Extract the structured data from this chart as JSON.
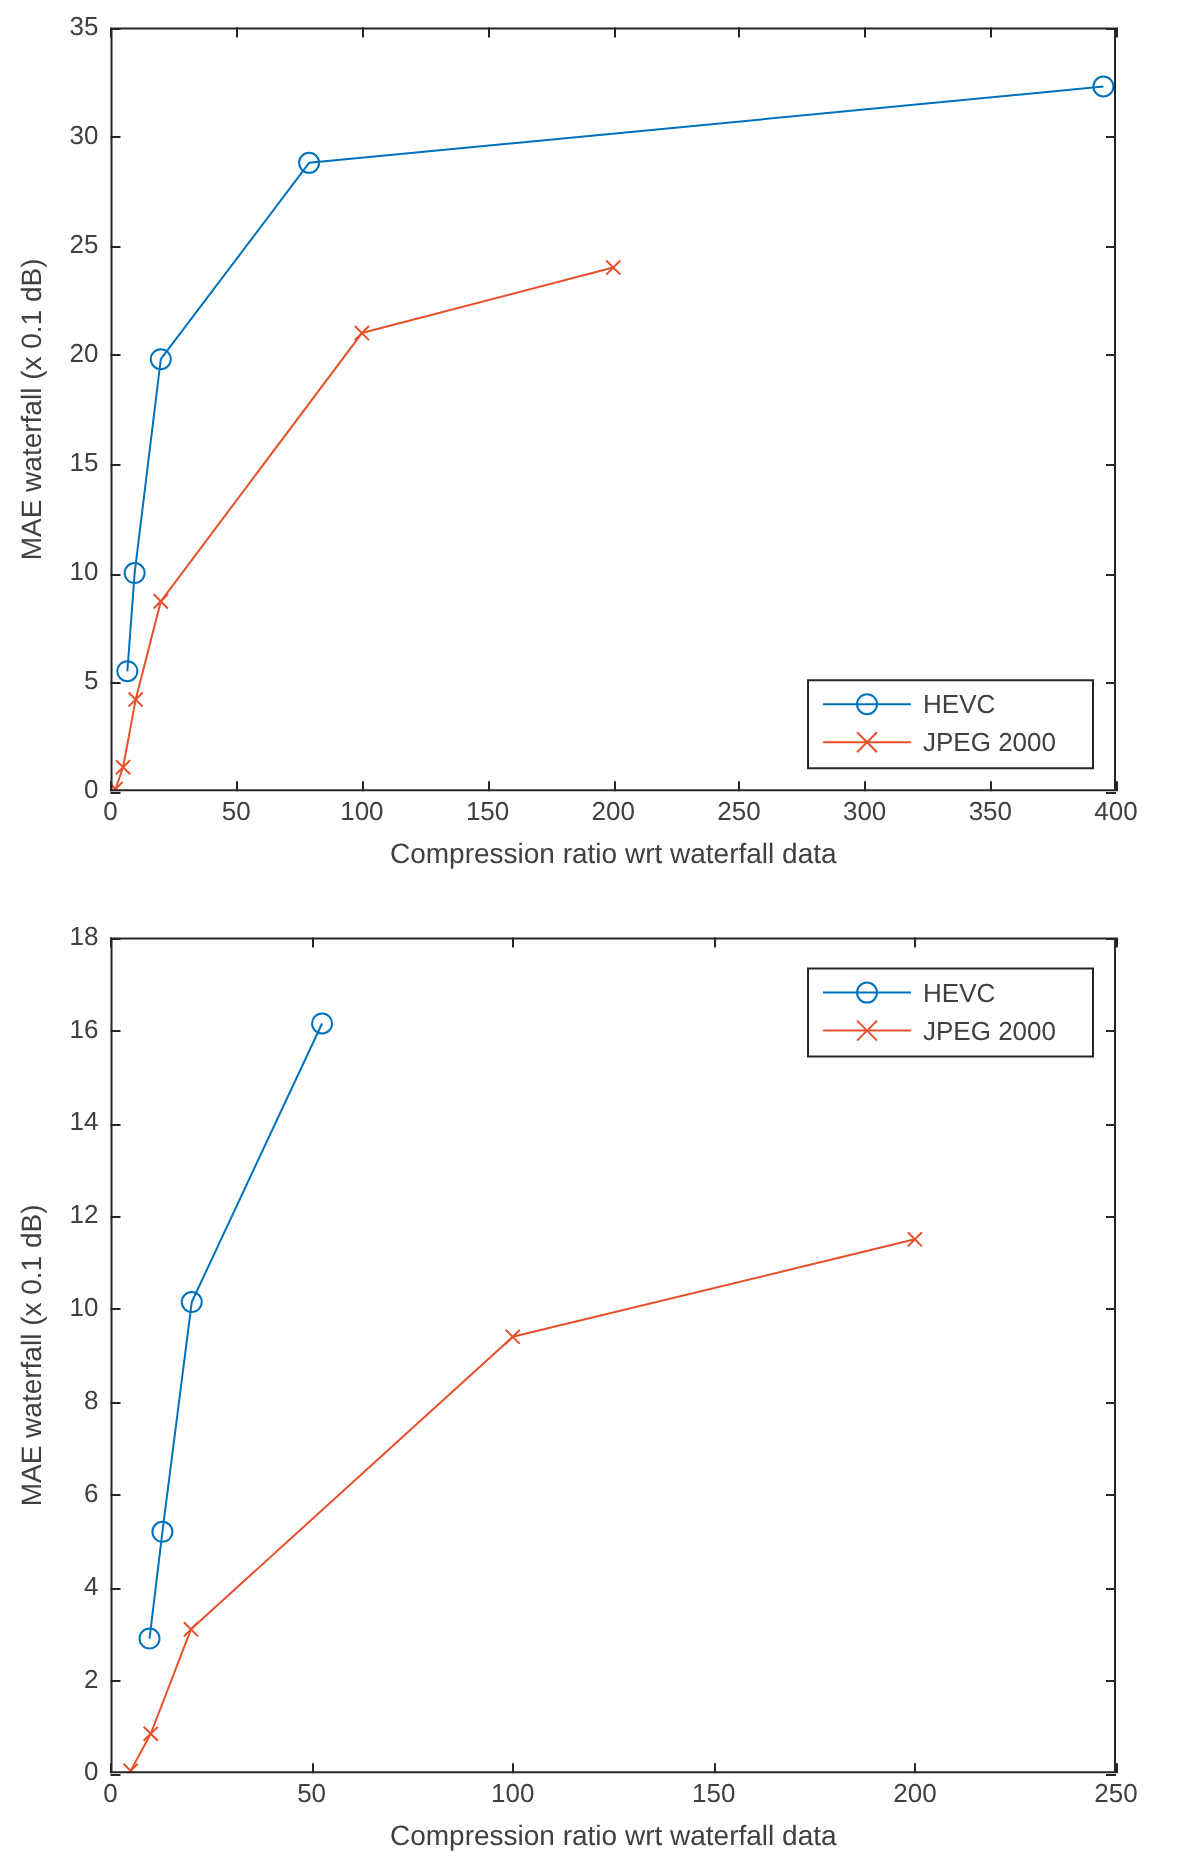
{
  "chart_data": [
    {
      "type": "line",
      "xlabel": "Compression ratio wrt waterfall data",
      "ylabel": "MAE waterfall (x 0.1 dB)",
      "xlim": [
        0,
        400
      ],
      "xticks": [
        0,
        50,
        100,
        150,
        200,
        250,
        300,
        350,
        400
      ],
      "ylim": [
        0,
        35
      ],
      "yticks": [
        0,
        5,
        10,
        15,
        20,
        25,
        30,
        35
      ],
      "grid": false,
      "legend": "bottom right",
      "series": [
        {
          "name": "HEVC",
          "color": "#0072bd",
          "marker": "circle",
          "x": [
            6.7,
            9.6,
            20,
            79,
            395
          ],
          "values": [
            5.5,
            10.0,
            19.8,
            28.8,
            32.3
          ]
        },
        {
          "name": "JPEG 2000",
          "color": "#e8502a",
          "marker": "cross",
          "x": [
            2,
            5,
            10,
            20,
            100,
            200
          ],
          "values": [
            0.1,
            1.1,
            4.2,
            8.7,
            21.0,
            24.0
          ]
        }
      ]
    },
    {
      "type": "line",
      "xlabel": "Compression ratio wrt waterfall data",
      "ylabel": "MAE waterfall (x 0.1 dB)",
      "xlim": [
        0,
        250
      ],
      "xticks": [
        0,
        50,
        100,
        150,
        200,
        250
      ],
      "ylim": [
        0,
        18
      ],
      "yticks": [
        0,
        2,
        4,
        6,
        8,
        10,
        12,
        14,
        16,
        18
      ],
      "grid": false,
      "legend": "top right",
      "series": [
        {
          "name": "HEVC",
          "color": "#0072bd",
          "marker": "circle",
          "x": [
            9.7,
            12.9,
            20.2,
            52.6
          ],
          "values": [
            2.9,
            5.2,
            10.15,
            16.15
          ]
        },
        {
          "name": "JPEG 2000",
          "color": "#e8502a",
          "marker": "cross",
          "x": [
            5,
            10,
            20,
            100,
            200
          ],
          "values": [
            0.05,
            0.85,
            3.1,
            9.4,
            11.5
          ]
        }
      ]
    }
  ]
}
